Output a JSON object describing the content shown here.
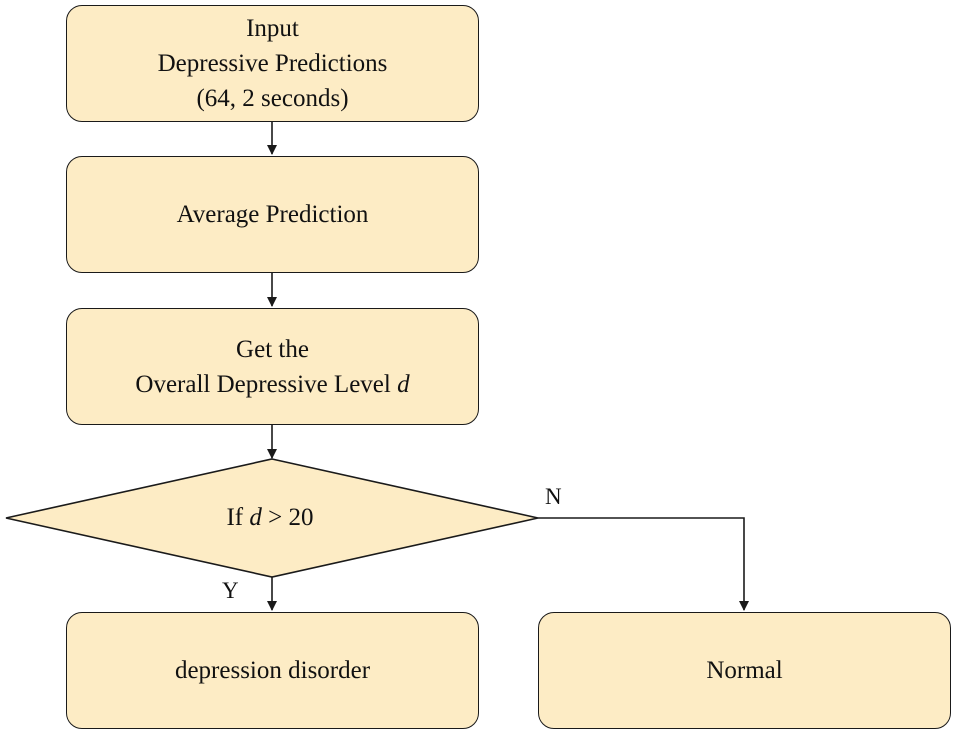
{
  "colors": {
    "node_fill": "#fdecc5",
    "stroke": "#1a1a1a"
  },
  "nodes": {
    "input": {
      "line1": "Input",
      "line2": "Depressive Predictions",
      "line3": "(64, 2 seconds)"
    },
    "average": {
      "label": "Average Prediction"
    },
    "level": {
      "line1": "Get the",
      "line2_text": "Overall Depressive Level ",
      "line2_var": "d"
    },
    "decision": {
      "prefix": "If ",
      "var": "d",
      "condition": " > 20"
    },
    "outcome_yes": {
      "label": "depression disorder"
    },
    "outcome_no": {
      "label": "Normal"
    }
  },
  "branches": {
    "yes": "Y",
    "no": "N"
  }
}
